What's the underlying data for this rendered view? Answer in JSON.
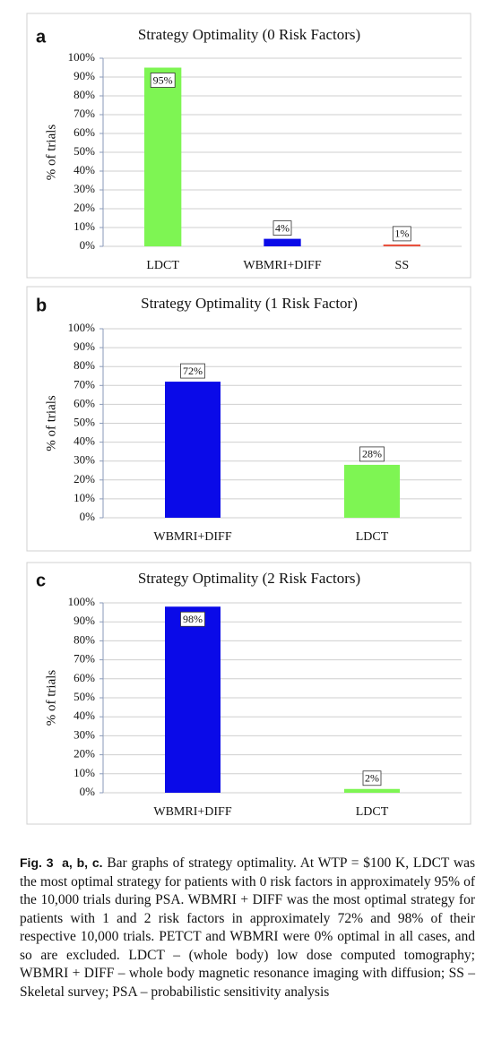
{
  "chart_data": [
    {
      "type": "bar",
      "panel": "a",
      "title": "Strategy Optimality (0 Risk Factors)",
      "ylabel": "% of trials",
      "categories": [
        "LDCT",
        "WBMRI+DIFF",
        "SS"
      ],
      "values": [
        95,
        4,
        1
      ],
      "value_labels": [
        "95%",
        "4%",
        "1%"
      ],
      "colors": [
        "#7ef553",
        "#0a0ae8",
        "#e8523e"
      ],
      "ylim": [
        0,
        100
      ],
      "yticks": [
        {
          "value": 0,
          "label": "0%"
        },
        {
          "value": 10,
          "label": "10%"
        },
        {
          "value": 20,
          "label": "20%"
        },
        {
          "value": 30,
          "label": "30%"
        },
        {
          "value": 40,
          "label": "40%"
        },
        {
          "value": 50,
          "label": "50%"
        },
        {
          "value": 60,
          "label": "60%"
        },
        {
          "value": 70,
          "label": "70%"
        },
        {
          "value": 80,
          "label": "80%"
        },
        {
          "value": 90,
          "label": "90%"
        },
        {
          "value": 100,
          "label": "100%"
        }
      ],
      "grid": true
    },
    {
      "type": "bar",
      "panel": "b",
      "title": "Strategy Optimality (1 Risk Factor)",
      "ylabel": "% of trials",
      "categories": [
        "WBMRI+DIFF",
        "LDCT"
      ],
      "values": [
        72,
        28
      ],
      "value_labels": [
        "72%",
        "28%"
      ],
      "colors": [
        "#0a0ae8",
        "#7ef553"
      ],
      "ylim": [
        0,
        100
      ],
      "yticks": [
        {
          "value": 0,
          "label": "0%"
        },
        {
          "value": 10,
          "label": "10%"
        },
        {
          "value": 20,
          "label": "20%"
        },
        {
          "value": 30,
          "label": "30%"
        },
        {
          "value": 40,
          "label": "40%"
        },
        {
          "value": 50,
          "label": "50%"
        },
        {
          "value": 60,
          "label": "60%"
        },
        {
          "value": 70,
          "label": "70%"
        },
        {
          "value": 80,
          "label": "80%"
        },
        {
          "value": 90,
          "label": "90%"
        },
        {
          "value": 100,
          "label": "100%"
        }
      ],
      "grid": true
    },
    {
      "type": "bar",
      "panel": "c",
      "title": "Strategy Optimality (2 Risk Factors)",
      "ylabel": "% of trials",
      "categories": [
        "WBMRI+DIFF",
        "LDCT"
      ],
      "values": [
        98,
        2
      ],
      "value_labels": [
        "98%",
        "2%"
      ],
      "colors": [
        "#0a0ae8",
        "#7ef553"
      ],
      "ylim": [
        0,
        100
      ],
      "yticks": [
        {
          "value": 0,
          "label": "0%"
        },
        {
          "value": 10,
          "label": "10%"
        },
        {
          "value": 20,
          "label": "20%"
        },
        {
          "value": 30,
          "label": "30%"
        },
        {
          "value": 40,
          "label": "40%"
        },
        {
          "value": 50,
          "label": "50%"
        },
        {
          "value": 60,
          "label": "60%"
        },
        {
          "value": 70,
          "label": "70%"
        },
        {
          "value": 80,
          "label": "80%"
        },
        {
          "value": 90,
          "label": "90%"
        },
        {
          "value": 100,
          "label": "100%"
        }
      ],
      "grid": true
    }
  ],
  "caption": {
    "label": "Fig. 3",
    "panels": "a, b, c.",
    "text": "Bar graphs of strategy optimality. At WTP = $100 K, LDCT was the most optimal strategy for patients with 0 risk factors in approximately 95% of the 10,000 trials during PSA. WBMRI + DIFF was the most optimal strategy for patients with 1 and 2 risk factors in approximately 72% and 98% of their respective 10,000 trials. PETCT and WBMRI were 0% optimal in all cases, and so are excluded. LDCT – (whole body) low dose computed tomography; WBMRI + DIFF – whole body magnetic resonance imaging with diffusion; SS – Skeletal survey; PSA – probabilistic sensitivity analysis"
  }
}
